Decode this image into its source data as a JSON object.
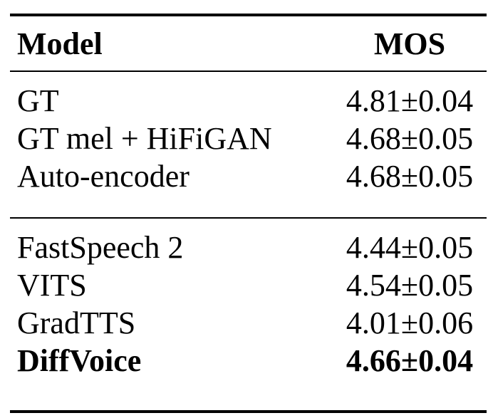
{
  "table": {
    "columns": [
      "Model",
      "MOS"
    ],
    "sections": [
      {
        "name": "reference-systems",
        "rows": [
          {
            "model": "GT",
            "mos": "4.81±0.04",
            "bold": false
          },
          {
            "model": "GT mel + HiFiGAN",
            "mos": "4.68±0.05",
            "bold": false
          },
          {
            "model": "Auto-encoder",
            "mos": "4.68±0.05",
            "bold": false
          }
        ]
      },
      {
        "name": "tts-systems",
        "rows": [
          {
            "model": "FastSpeech 2",
            "mos": "4.44±0.05",
            "bold": false
          },
          {
            "model": "VITS",
            "mos": "4.54±0.05",
            "bold": false
          },
          {
            "model": "GradTTS",
            "mos": "4.01±0.06",
            "bold": false
          },
          {
            "model": "DiffVoice",
            "mos": "4.66±0.04",
            "bold": true
          }
        ]
      }
    ]
  },
  "colors": {
    "text": "#000000",
    "background": "#ffffff",
    "rule": "#000000"
  }
}
